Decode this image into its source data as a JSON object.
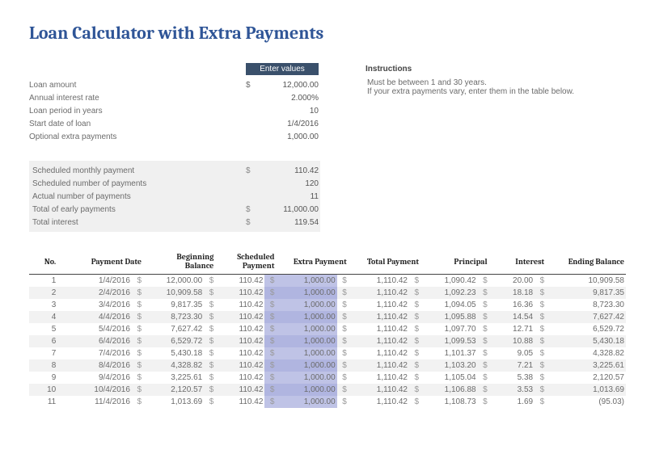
{
  "title": "Loan Calculator with Extra Payments",
  "header_bar": {
    "enter_values": "Enter values",
    "instructions": "Instructions"
  },
  "inputs": {
    "loan_amount_label": "Loan amount",
    "loan_amount": "12,000.00",
    "interest_label": "Annual interest rate",
    "interest": "2.000%",
    "period_label": "Loan period in years",
    "period": "10",
    "start_label": "Start date of loan",
    "start": "1/4/2016",
    "extra_label": "Optional extra payments",
    "extra": "1,000.00"
  },
  "instructions": {
    "line1": "Must be between 1 and 30 years.",
    "line2": "If your extra payments vary, enter them in the table below."
  },
  "summary": {
    "sched_pay_label": "Scheduled monthly payment",
    "sched_pay": "110.42",
    "sched_num_label": "Scheduled number of payments",
    "sched_num": "120",
    "actual_num_label": "Actual number of payments",
    "actual_num": "11",
    "early_label": "Total of early payments",
    "early": "11,000.00",
    "total_int_label": "Total interest",
    "total_int": "119.54"
  },
  "table": {
    "headers": {
      "no": "No.",
      "date": "Payment Date",
      "beg": "Beginning Balance",
      "sched": "Scheduled Payment",
      "extra": "Extra Payment",
      "total": "Total Payment",
      "prin": "Principal",
      "int": "Interest",
      "end": "Ending Balance"
    },
    "rows": [
      {
        "no": "1",
        "date": "1/4/2016",
        "beg": "12,000.00",
        "sched": "110.42",
        "extra": "1,000.00",
        "total": "1,110.42",
        "prin": "1,090.42",
        "int": "20.00",
        "end": "10,909.58"
      },
      {
        "no": "2",
        "date": "2/4/2016",
        "beg": "10,909.58",
        "sched": "110.42",
        "extra": "1,000.00",
        "total": "1,110.42",
        "prin": "1,092.23",
        "int": "18.18",
        "end": "9,817.35"
      },
      {
        "no": "3",
        "date": "3/4/2016",
        "beg": "9,817.35",
        "sched": "110.42",
        "extra": "1,000.00",
        "total": "1,110.42",
        "prin": "1,094.05",
        "int": "16.36",
        "end": "8,723.30"
      },
      {
        "no": "4",
        "date": "4/4/2016",
        "beg": "8,723.30",
        "sched": "110.42",
        "extra": "1,000.00",
        "total": "1,110.42",
        "prin": "1,095.88",
        "int": "14.54",
        "end": "7,627.42"
      },
      {
        "no": "5",
        "date": "5/4/2016",
        "beg": "7,627.42",
        "sched": "110.42",
        "extra": "1,000.00",
        "total": "1,110.42",
        "prin": "1,097.70",
        "int": "12.71",
        "end": "6,529.72"
      },
      {
        "no": "6",
        "date": "6/4/2016",
        "beg": "6,529.72",
        "sched": "110.42",
        "extra": "1,000.00",
        "total": "1,110.42",
        "prin": "1,099.53",
        "int": "10.88",
        "end": "5,430.18"
      },
      {
        "no": "7",
        "date": "7/4/2016",
        "beg": "5,430.18",
        "sched": "110.42",
        "extra": "1,000.00",
        "total": "1,110.42",
        "prin": "1,101.37",
        "int": "9.05",
        "end": "4,328.82"
      },
      {
        "no": "8",
        "date": "8/4/2016",
        "beg": "4,328.82",
        "sched": "110.42",
        "extra": "1,000.00",
        "total": "1,110.42",
        "prin": "1,103.20",
        "int": "7.21",
        "end": "3,225.61"
      },
      {
        "no": "9",
        "date": "9/4/2016",
        "beg": "3,225.61",
        "sched": "110.42",
        "extra": "1,000.00",
        "total": "1,110.42",
        "prin": "1,105.04",
        "int": "5.38",
        "end": "2,120.57"
      },
      {
        "no": "10",
        "date": "10/4/2016",
        "beg": "2,120.57",
        "sched": "110.42",
        "extra": "1,000.00",
        "total": "1,110.42",
        "prin": "1,106.88",
        "int": "3.53",
        "end": "1,013.69"
      },
      {
        "no": "11",
        "date": "11/4/2016",
        "beg": "1,013.69",
        "sched": "110.42",
        "extra": "1,000.00",
        "total": "1,110.42",
        "prin": "1,108.73",
        "int": "1.69",
        "end": "(95.03)"
      }
    ],
    "styling": {
      "extra_col_bg": "#bfc3e6",
      "alt_row_bg": "#f2f2f2",
      "header_border": "#444444"
    }
  },
  "colors": {
    "title": "#2f5597",
    "bar_bg": "#3a506b",
    "text_muted": "#6b6b6b",
    "summary_bg": "#f0f0f0"
  }
}
